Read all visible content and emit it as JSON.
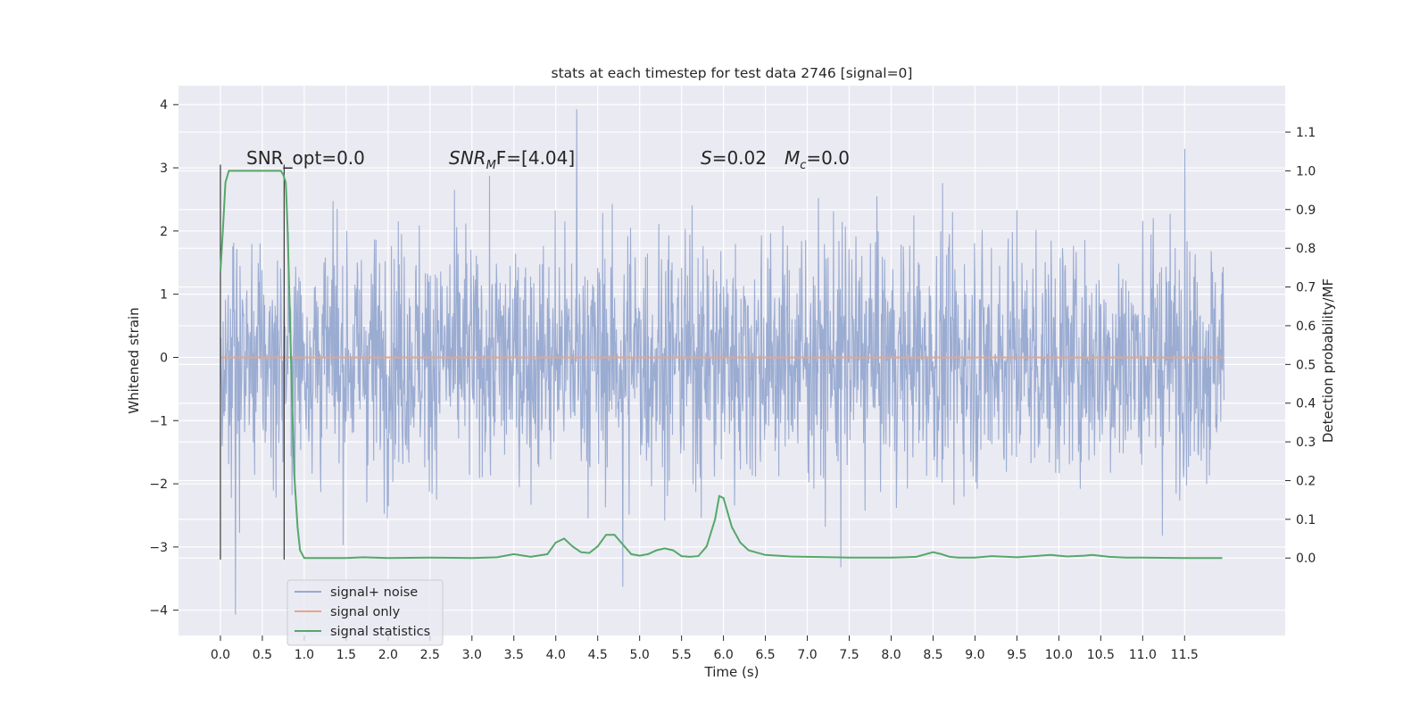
{
  "chart_data": {
    "type": "line",
    "title": "stats at each timestep for test data 2746 [signal=0]",
    "xlabel": "Time (s)",
    "ylabel": "Whitened strain",
    "y2label": "Detection probability/MF",
    "xlim": [
      -0.5,
      12.7
    ],
    "ylim": [
      -4.4,
      4.3
    ],
    "y2lim": [
      -0.2,
      1.22
    ],
    "x_ticks": [
      "0.0",
      "0.5",
      "1.0",
      "1.5",
      "2.0",
      "2.5",
      "3.0",
      "3.5",
      "4.0",
      "4.5",
      "5.0",
      "5.5",
      "6.0",
      "6.5",
      "7.0",
      "7.5",
      "8.0",
      "8.5",
      "9.0",
      "9.5",
      "10.0",
      "10.5",
      "11.0",
      "11.5"
    ],
    "y_ticks": [
      "4",
      "3",
      "2",
      "1",
      "0",
      "−1",
      "−2",
      "−3",
      "−4"
    ],
    "y2_ticks": [
      "1.1",
      "1.0",
      "0.9",
      "0.8",
      "0.7",
      "0.6",
      "0.5",
      "0.4",
      "0.3",
      "0.2",
      "0.1",
      "0.0"
    ],
    "grid": true,
    "legend": {
      "position": "lower-left",
      "entries": [
        {
          "label": "signal+ noise",
          "color": "#97a9d0"
        },
        {
          "label": "signal only",
          "color": "#e6a58a"
        },
        {
          "label": "signal statistics",
          "color": "#55a868"
        }
      ]
    },
    "annotations": {
      "snr_opt": "SNR_opt=0.0",
      "snr_mf_sym": "SNR",
      "snr_mf_sub": "M",
      "snr_mf_rest": "F=[4.04]",
      "s_sym": "S",
      "s_rest": "=0.02",
      "mc_sym": "M",
      "mc_sub": "c",
      "mc_rest": "=0.0"
    },
    "vertical_markers": [
      0.0,
      0.76
    ],
    "series": [
      {
        "name": "signal+ noise",
        "color": "#97a9d0",
        "x_range": [
          0.0,
          11.97
        ],
        "typical_envelope": [
          -2.2,
          2.2
        ],
        "extremes": [
          {
            "x": 0.18,
            "y": -4.07
          },
          {
            "x": 4.25,
            "y": 3.93
          },
          {
            "x": 4.8,
            "y": -3.63
          },
          {
            "x": 11.5,
            "y": 3.3
          },
          {
            "x": 7.4,
            "y": -3.32
          }
        ]
      },
      {
        "name": "signal only",
        "color": "#e6a58a",
        "x": [
          0.0,
          11.97
        ],
        "y": [
          0.0,
          0.0
        ]
      },
      {
        "name": "signal statistics",
        "color": "#55a868",
        "axis": "right",
        "x": [
          0.0,
          0.03,
          0.06,
          0.1,
          0.15,
          0.2,
          0.3,
          0.5,
          0.65,
          0.72,
          0.75,
          0.78,
          0.8,
          0.82,
          0.85,
          0.88,
          0.92,
          0.95,
          1.0,
          1.2,
          1.5,
          1.7,
          2.0,
          2.5,
          3.0,
          3.3,
          3.5,
          3.7,
          3.9,
          4.0,
          4.1,
          4.2,
          4.3,
          4.4,
          4.5,
          4.6,
          4.7,
          4.8,
          4.9,
          5.0,
          5.1,
          5.2,
          5.3,
          5.4,
          5.5,
          5.6,
          5.7,
          5.8,
          5.9,
          5.95,
          6.0,
          6.1,
          6.2,
          6.3,
          6.5,
          6.8,
          7.0,
          7.3,
          7.5,
          8.0,
          8.3,
          8.5,
          8.6,
          8.7,
          8.8,
          9.0,
          9.2,
          9.5,
          9.7,
          9.9,
          10.1,
          10.3,
          10.4,
          10.6,
          10.8,
          11.0,
          11.5,
          11.95
        ],
        "y": [
          0.74,
          0.85,
          0.97,
          1.0,
          1.0,
          1.0,
          1.0,
          1.0,
          1.0,
          1.0,
          0.99,
          0.97,
          0.86,
          0.7,
          0.45,
          0.22,
          0.08,
          0.02,
          0.0,
          0.0,
          0.0,
          0.002,
          0.0,
          0.001,
          0.0,
          0.002,
          0.01,
          0.003,
          0.01,
          0.04,
          0.05,
          0.03,
          0.015,
          0.013,
          0.03,
          0.06,
          0.06,
          0.035,
          0.01,
          0.006,
          0.01,
          0.02,
          0.025,
          0.02,
          0.005,
          0.003,
          0.005,
          0.03,
          0.1,
          0.16,
          0.155,
          0.08,
          0.04,
          0.02,
          0.008,
          0.004,
          0.003,
          0.002,
          0.001,
          0.001,
          0.003,
          0.015,
          0.01,
          0.003,
          0.001,
          0.001,
          0.005,
          0.002,
          0.005,
          0.008,
          0.004,
          0.006,
          0.008,
          0.003,
          0.001,
          0.001,
          0.0,
          0.0
        ]
      }
    ]
  }
}
